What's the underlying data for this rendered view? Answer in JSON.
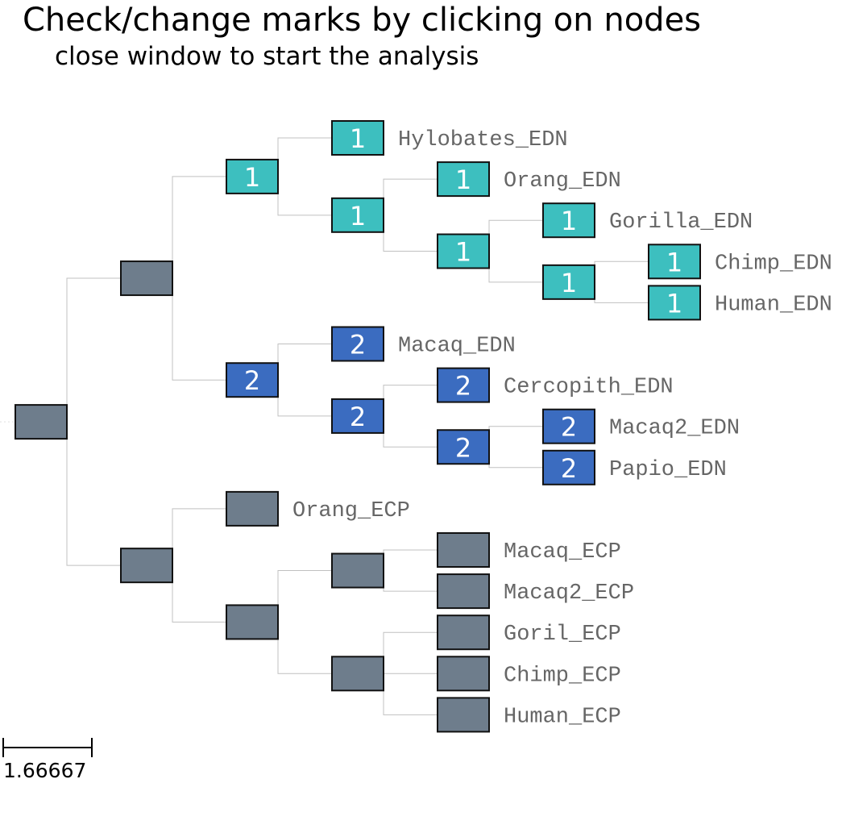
{
  "header": {
    "title": "Check/change marks by clicking on nodes",
    "subtitle": "close window to start the analysis"
  },
  "colors": {
    "unmarked": "#6e7d8c",
    "mark_1": "#3dbfbf",
    "mark_2": "#3b6cc0",
    "branch": "#c0c0c0",
    "label": "#666666"
  },
  "scale_bar": {
    "label": "1.66667"
  },
  "tree": {
    "id": "root",
    "mark": "",
    "children": [
      {
        "id": "edn-clade",
        "mark": "",
        "children": [
          {
            "id": "edn-hominoid",
            "mark": "1",
            "children": [
              {
                "id": "hylobates-edn",
                "mark": "1",
                "name": "Hylobates_EDN"
              },
              {
                "id": "edn-great-apes",
                "mark": "1",
                "children": [
                  {
                    "id": "orang-edn",
                    "mark": "1",
                    "name": "Orang_EDN"
                  },
                  {
                    "id": "edn-african-apes",
                    "mark": "1",
                    "children": [
                      {
                        "id": "gorilla-edn",
                        "mark": "1",
                        "name": "Gorilla_EDN"
                      },
                      {
                        "id": "edn-chimp-human",
                        "mark": "1",
                        "children": [
                          {
                            "id": "chimp-edn",
                            "mark": "1",
                            "name": "Chimp_EDN"
                          },
                          {
                            "id": "human-edn",
                            "mark": "1",
                            "name": "Human_EDN"
                          }
                        ]
                      }
                    ]
                  }
                ]
              }
            ]
          },
          {
            "id": "edn-old-world",
            "mark": "2",
            "children": [
              {
                "id": "macaq-edn",
                "mark": "2",
                "name": "Macaq_EDN"
              },
              {
                "id": "edn-cercopith",
                "mark": "2",
                "children": [
                  {
                    "id": "cercopith-edn",
                    "mark": "2",
                    "name": "Cercopith_EDN"
                  },
                  {
                    "id": "edn-macaq2-papio",
                    "mark": "2",
                    "children": [
                      {
                        "id": "macaq2-edn",
                        "mark": "2",
                        "name": "Macaq2_EDN"
                      },
                      {
                        "id": "papio-edn",
                        "mark": "2",
                        "name": "Papio_EDN"
                      }
                    ]
                  }
                ]
              }
            ]
          }
        ]
      },
      {
        "id": "ecp-clade",
        "mark": "",
        "children": [
          {
            "id": "orang-ecp",
            "mark": "",
            "name": "Orang_ECP"
          },
          {
            "id": "ecp-rest",
            "mark": "",
            "children": [
              {
                "id": "ecp-macaq",
                "mark": "",
                "children": [
                  {
                    "id": "macaq-ecp",
                    "mark": "",
                    "name": "Macaq_ECP"
                  },
                  {
                    "id": "macaq2-ecp",
                    "mark": "",
                    "name": "Macaq2_ECP"
                  }
                ]
              },
              {
                "id": "ecp-hominid",
                "mark": "",
                "children": [
                  {
                    "id": "goril-ecp",
                    "mark": "",
                    "name": "Goril_ECP"
                  },
                  {
                    "id": "chimp-ecp",
                    "mark": "",
                    "name": "Chimp_ECP"
                  },
                  {
                    "id": "human-ecp",
                    "mark": "",
                    "name": "Human_ECP"
                  }
                ]
              }
            ]
          }
        ]
      }
    ]
  }
}
